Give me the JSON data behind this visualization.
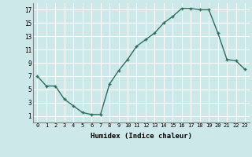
{
  "x": [
    0,
    1,
    2,
    3,
    4,
    5,
    6,
    7,
    8,
    9,
    10,
    11,
    12,
    13,
    14,
    15,
    16,
    17,
    18,
    19,
    20,
    21,
    22,
    23
  ],
  "y": [
    7,
    5.5,
    5.5,
    3.5,
    2.5,
    1.5,
    1.2,
    1.2,
    5.8,
    7.8,
    9.5,
    11.5,
    12.5,
    13.5,
    15,
    16,
    17.2,
    17.2,
    17,
    17,
    13.5,
    9.5,
    9.3,
    8
  ],
  "xlabel": "Humidex (Indice chaleur)",
  "line_color": "#2e6e5e",
  "bg_color": "#cce8e8",
  "grid_color": "#ffffff",
  "ylim": [
    0,
    18
  ],
  "xlim": [
    -0.5,
    23.5
  ],
  "yticks": [
    1,
    3,
    5,
    7,
    9,
    11,
    13,
    15,
    17
  ],
  "xticks": [
    0,
    1,
    2,
    3,
    4,
    5,
    6,
    7,
    8,
    9,
    10,
    11,
    12,
    13,
    14,
    15,
    16,
    17,
    18,
    19,
    20,
    21,
    22,
    23
  ]
}
